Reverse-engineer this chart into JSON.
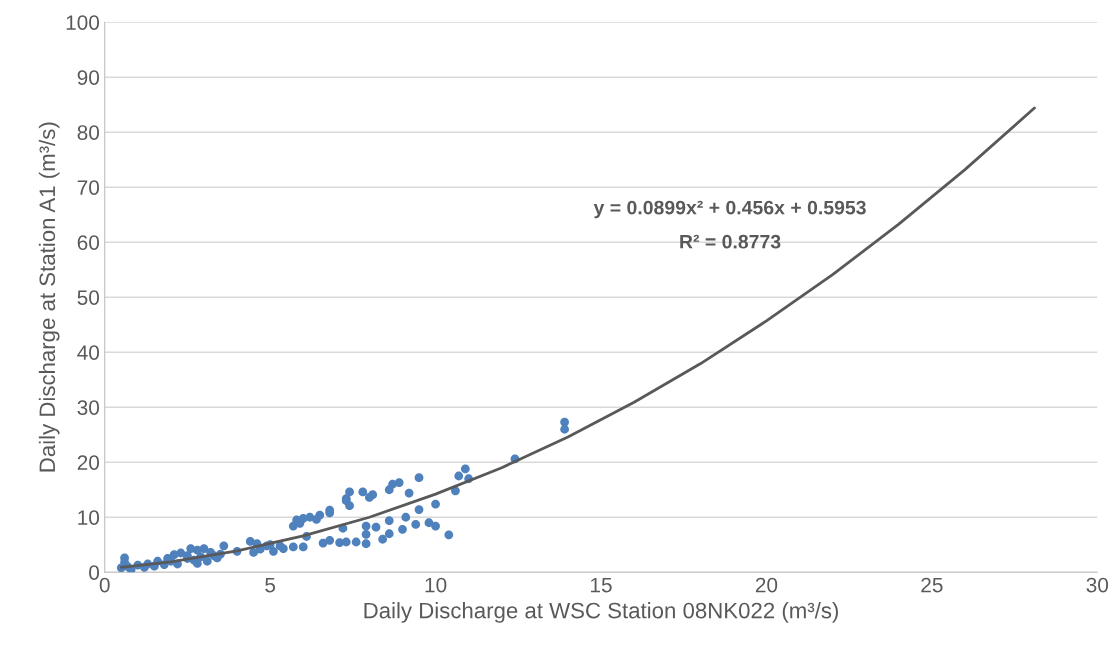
{
  "chart_data": {
    "type": "scatter",
    "xlabel": "Daily Discharge at WSC Station 08NK022 (m³/s)",
    "ylabel": "Daily Discharge at Station A1 (m³/s)",
    "xlim": [
      0,
      30
    ],
    "xticks": [
      0,
      5,
      10,
      15,
      20,
      25,
      30
    ],
    "ylim": [
      0,
      100
    ],
    "yticks": [
      0,
      10,
      20,
      30,
      40,
      50,
      60,
      70,
      80,
      90,
      100
    ],
    "grid": "y",
    "marker": "circle",
    "legend": false,
    "series": [
      {
        "color": "#4f81bd",
        "x": [
          13.9,
          13.9,
          12.4,
          10.9,
          10.7,
          11.0,
          9.5,
          8.9,
          8.7,
          8.6,
          9.2,
          10.6,
          7.8,
          8.1,
          8.0,
          7.4,
          7.3,
          7.4,
          7.3,
          6.8,
          6.8,
          6.5,
          6.2,
          6.0,
          5.8,
          5.7,
          5.9,
          6.4,
          7.2,
          7.9,
          8.2,
          8.6,
          9.1,
          9.5,
          10.0,
          9.8,
          10.0,
          9.0,
          9.4,
          8.6,
          8.4,
          7.9,
          10.4,
          7.6,
          7.9,
          7.1,
          7.3,
          6.8,
          6.6,
          6.1,
          6.0,
          5.7,
          5.4,
          5.3,
          5.1,
          4.6,
          4.7,
          4.4,
          4.5,
          4.9,
          5.0,
          4.0,
          3.5,
          3.6,
          3.3,
          3.0,
          2.8,
          2.6,
          2.3,
          2.1,
          2.5,
          2.0,
          1.6,
          1.3,
          1.0,
          0.7,
          0.6,
          0.6,
          0.5,
          0.8,
          1.2,
          1.8,
          2.2,
          2.8,
          3.1,
          3.4,
          2.5,
          1.9,
          1.5,
          2.9,
          3.2,
          2.7
        ],
        "values": [
          27.3,
          26.0,
          20.6,
          18.8,
          17.5,
          17.0,
          17.2,
          16.3,
          16.0,
          15.0,
          14.4,
          14.8,
          14.6,
          14.1,
          13.6,
          14.6,
          13.4,
          12.1,
          13.0,
          11.3,
          10.8,
          10.4,
          10.0,
          9.8,
          9.5,
          8.4,
          8.9,
          9.6,
          8.0,
          8.4,
          8.2,
          9.4,
          10.0,
          11.4,
          12.4,
          9.0,
          8.4,
          7.8,
          8.7,
          7.0,
          6.0,
          6.9,
          6.8,
          5.5,
          5.2,
          5.4,
          5.5,
          5.8,
          5.3,
          6.5,
          4.6,
          4.6,
          4.3,
          4.8,
          3.8,
          5.2,
          4.2,
          5.6,
          3.6,
          4.8,
          5.0,
          3.8,
          3.3,
          4.8,
          3.0,
          4.3,
          4.0,
          4.3,
          3.5,
          3.2,
          2.5,
          2.0,
          2.0,
          1.5,
          1.3,
          1.0,
          2.6,
          1.8,
          0.8,
          0.5,
          0.9,
          1.4,
          1.5,
          1.6,
          2.0,
          2.6,
          3.0,
          2.5,
          1.1,
          2.8,
          3.6,
          2.2
        ]
      },
      {
        "type": "line",
        "color": "#595959",
        "marker": "none",
        "x": [
          0.5,
          2,
          4,
          6,
          8,
          10,
          12,
          14,
          16,
          18,
          20,
          22,
          24,
          26,
          28.1
        ],
        "values": [
          0.9,
          1.9,
          3.9,
          6.6,
          10.0,
          14.2,
          19.0,
          24.6,
          30.9,
          37.9,
          45.7,
          54.1,
          63.3,
          73.2,
          84.4
        ]
      }
    ],
    "annotations": [
      "y = 0.0899x² + 0.456x + 0.5953",
      "R² = 0.8773"
    ]
  }
}
